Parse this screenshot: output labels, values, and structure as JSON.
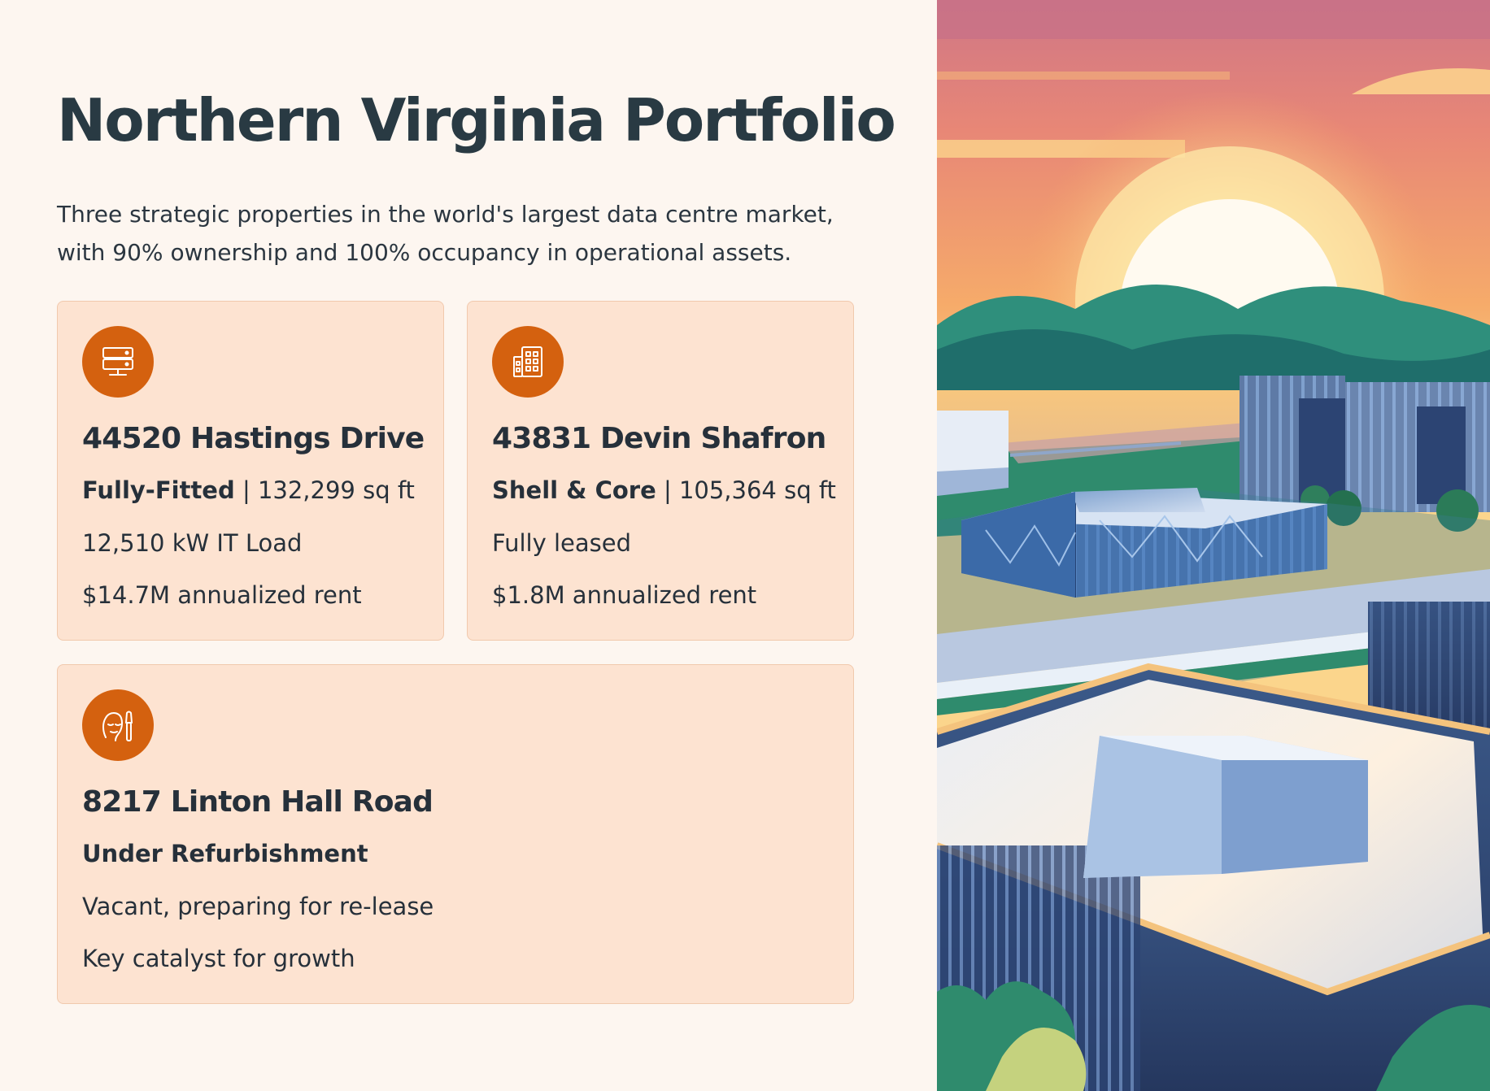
{
  "page": {
    "title": "Northern Virginia Portfolio",
    "subtitle": "Three strategic properties in the world's largest data centre market, with 90% ownership and 100% occupancy in operational assets."
  },
  "properties": [
    {
      "icon": "server-icon",
      "name": "44520 Hastings Drive",
      "status": "Fully-Fitted",
      "area": " | 132,299 sq ft",
      "detail": "12,510 kW IT Load",
      "rent": "$14.7M annualized rent"
    },
    {
      "icon": "building-icon",
      "name": "43831 Devin Shafron",
      "status": "Shell & Core",
      "area": " | 105,364 sq ft",
      "detail": "Fully leased",
      "rent": "$1.8M annualized rent"
    },
    {
      "icon": "face-brush-icon",
      "name": "8217 Linton Hall Road",
      "status": "Under Refurbishment",
      "detail": "Vacant, preparing for re-lease",
      "note": "Key catalyst for growth"
    }
  ],
  "colors": {
    "background": "#fdf6f0",
    "card": "#fde3d1",
    "accent": "#d4610f",
    "text": "#293a43"
  },
  "hero_image": {
    "name": "data-centre-campus-sunset-illustration"
  }
}
